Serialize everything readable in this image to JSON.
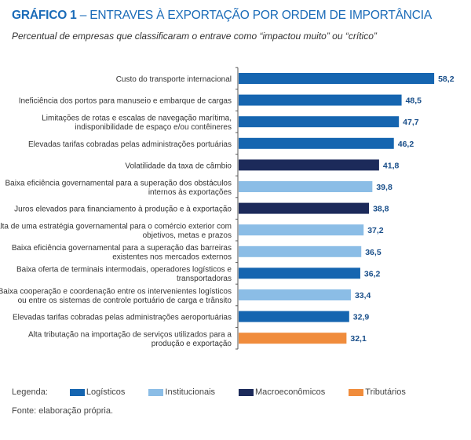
{
  "title_bold": "GRÁFICO 1",
  "title_rest": " – ENTRAVES À EXPORTAÇÃO POR ORDEM DE IMPORTÂNCIA",
  "subtitle": "Percentual de empresas que classificaram o entrave como “impactou muito” ou “crítico”",
  "colors": {
    "Logísticos": "#1565b0",
    "Institucionais": "#8bbde6",
    "Macroeconômicos": "#1c2a5a",
    "Tributários": "#f08c3c"
  },
  "chart_data": {
    "type": "bar",
    "orientation": "horizontal",
    "categories": [
      [
        "Custo do transporte internacional"
      ],
      [
        "Ineficiência dos portos para manuseio e embarque de cargas"
      ],
      [
        "Limitações de rotas e escalas de navegação marítima,",
        "indisponibilidade de espaço e/ou contêineres"
      ],
      [
        "Elevadas tarifas cobradas pelas administrações portuárias"
      ],
      [
        "Volatilidade da taxa de câmbio"
      ],
      [
        "Baixa eficiência governamental para a superação dos obstáculos",
        "internos às exportações"
      ],
      [
        "Juros elevados para financiamento à produção e à exportação"
      ],
      [
        "Falta de uma estratégia governamental para o comércio exterior com",
        "objetivos, metas e prazos"
      ],
      [
        "Baixa eficiência governamental para a superação das barreiras",
        "existentes nos mercados externos"
      ],
      [
        "Baixa oferta de terminais intermodais, operadores logísticos e",
        "transportadoras"
      ],
      [
        "Baixa cooperação e coordenação entre os intervenientes logísticos",
        "ou entre os sistemas de controle portuário de carga e trânsito"
      ],
      [
        "Elevadas tarifas cobradas pelas administrações aeroportuárias"
      ],
      [
        "Alta tributação na importação de serviços utilizados para a",
        "produção e exportação"
      ]
    ],
    "values": [
      58.2,
      48.5,
      47.7,
      46.2,
      41.8,
      39.8,
      38.8,
      37.2,
      36.5,
      36.2,
      33.4,
      32.9,
      32.1
    ],
    "value_labels": [
      "58,2",
      "48,5",
      "47,7",
      "46,2",
      "41,8",
      "39,8",
      "38,8",
      "37,2",
      "36,5",
      "36,2",
      "33,4",
      "32,9",
      "32,1"
    ],
    "groups": [
      "Logísticos",
      "Logísticos",
      "Logísticos",
      "Logísticos",
      "Macroeconômicos",
      "Institucionais",
      "Macroeconômicos",
      "Institucionais",
      "Institucionais",
      "Logísticos",
      "Institucionais",
      "Logísticos",
      "Tributários"
    ],
    "legend_title": "Legenda:",
    "legend": [
      "Logísticos",
      "Institucionais",
      "Macroeconômicos",
      "Tributários"
    ],
    "legend_placement": "bottom",
    "grid": false
  },
  "source": "Fonte: elaboração própria."
}
